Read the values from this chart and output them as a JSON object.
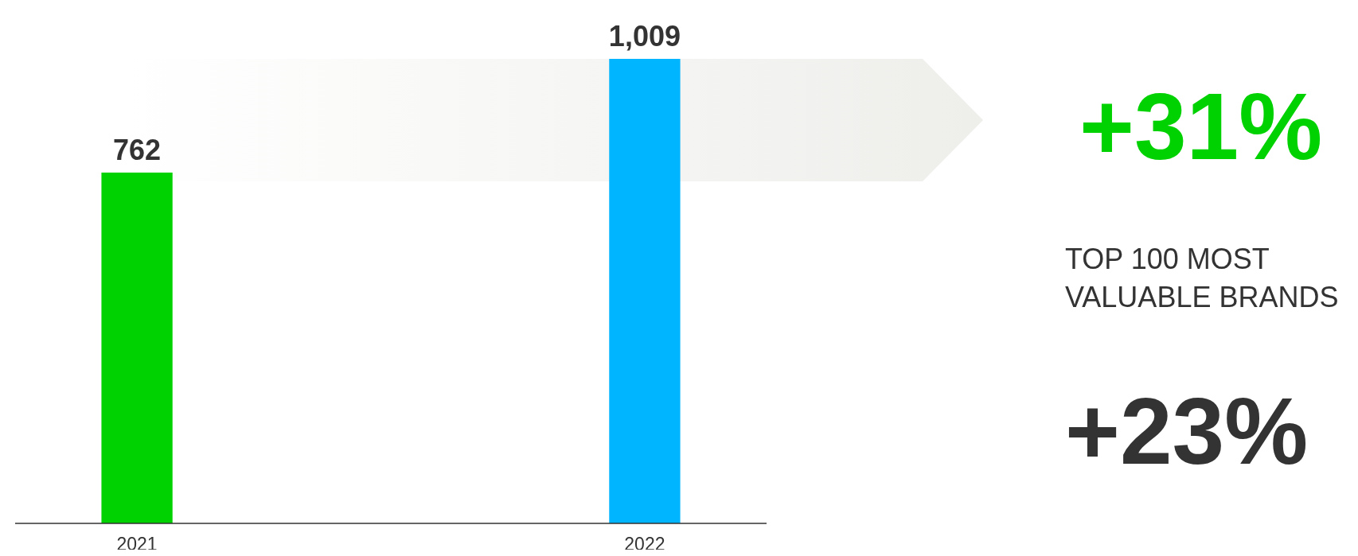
{
  "chart_data": {
    "type": "bar",
    "categories": [
      "2021",
      "2022"
    ],
    "values": [
      762,
      1009
    ],
    "colors": [
      "#00d100",
      "#00b5ff"
    ],
    "data_labels": true,
    "value_labels": [
      "762",
      "1,009"
    ],
    "annotations": [
      "+31%",
      "TOP 100 MOST VALUABLE BRANDS",
      "+23%"
    ]
  }
}
